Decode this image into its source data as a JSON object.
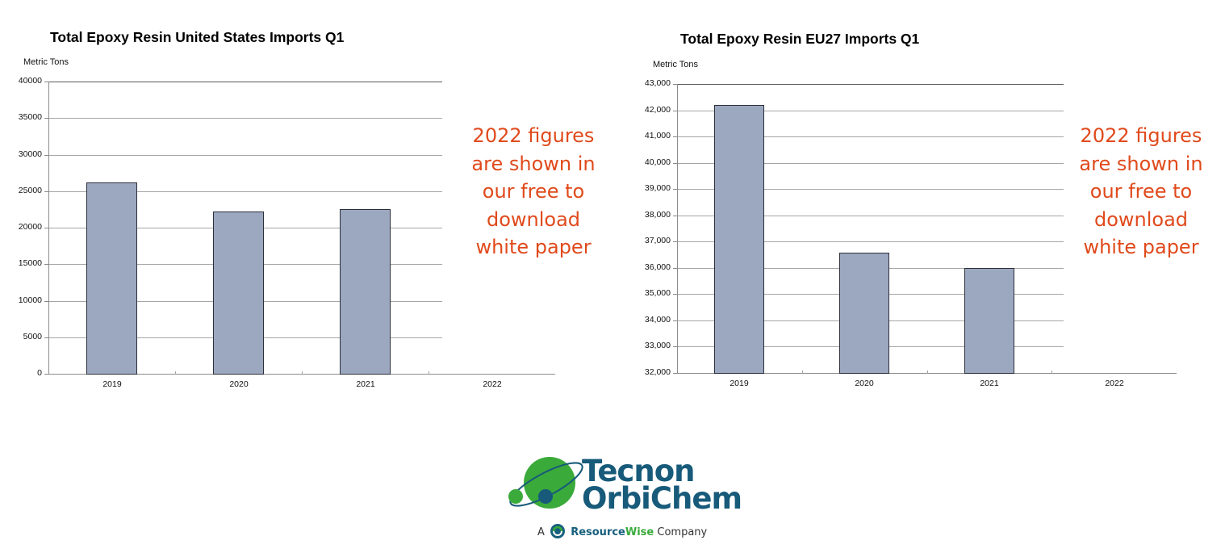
{
  "charts": [
    {
      "title": "Total Epoxy Resin United States Imports Q1",
      "unit_label": "Metric Tons",
      "note_lines": [
        "2022 figures",
        "are shown in",
        "our free to",
        "download",
        "white paper"
      ]
    },
    {
      "title": "Total Epoxy Resin EU27 Imports Q1",
      "unit_label": "Metric Tons",
      "note_lines": [
        "2022 figures",
        "are shown in",
        "our free to",
        "download",
        "white paper"
      ]
    }
  ],
  "logo": {
    "line1": "Tecnon",
    "line2": "OrbiChem",
    "tagline_prefix": "A",
    "tagline_brand_a": "Resource",
    "tagline_brand_b": "Wise",
    "tagline_suffix": "Company"
  },
  "colors": {
    "bar_fill": "#9ca8bf",
    "bar_border": "#2b2f3a",
    "note_text": "#e04a1c",
    "logo_blue": "#175a7a",
    "logo_green": "#3aaa3a"
  },
  "chart_data": [
    {
      "type": "bar",
      "title": "Total Epoxy Resin United States Imports Q1",
      "xlabel": "",
      "ylabel": "Metric Tons",
      "categories": [
        "2019",
        "2020",
        "2021",
        "2022"
      ],
      "values": [
        26200,
        22200,
        22500,
        null
      ],
      "ylim": [
        0,
        40000
      ],
      "yticks": [
        0,
        5000,
        10000,
        15000,
        20000,
        25000,
        30000,
        35000,
        40000
      ],
      "ytick_labels": [
        "0",
        "5000",
        "10000",
        "15000",
        "20000",
        "25000",
        "30000",
        "35000",
        "40000"
      ],
      "grid": true,
      "legend": null,
      "annotations": [
        "2022 figures are shown in our free to download white paper"
      ]
    },
    {
      "type": "bar",
      "title": "Total Epoxy Resin EU27 Imports Q1",
      "xlabel": "",
      "ylabel": "Metric Tons",
      "categories": [
        "2019",
        "2020",
        "2021",
        "2022"
      ],
      "values": [
        42200,
        36580,
        36000,
        null
      ],
      "ylim": [
        32000,
        43000
      ],
      "yticks": [
        32000,
        33000,
        34000,
        35000,
        36000,
        37000,
        38000,
        39000,
        40000,
        41000,
        42000,
        43000
      ],
      "ytick_labels": [
        "32,000",
        "33,000",
        "34,000",
        "35,000",
        "36,000",
        "37,000",
        "38,000",
        "39,000",
        "40,000",
        "41,000",
        "42,000",
        "43,000"
      ],
      "grid": true,
      "legend": null,
      "annotations": [
        "2022 figures are shown in our free to download white paper"
      ]
    }
  ]
}
